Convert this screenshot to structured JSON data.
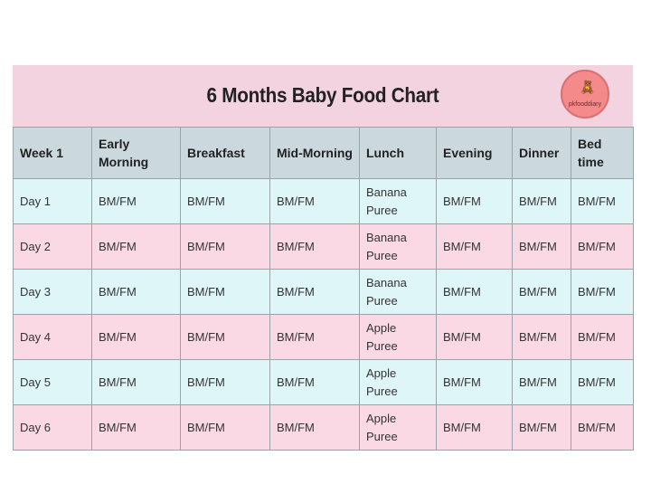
{
  "title": "6 Months Baby Food Chart",
  "logo_text": "pkfooddiary",
  "columns": [
    "Week 1",
    "Early Morning",
    "Breakfast",
    "Mid-Morning",
    "Lunch",
    "Evening",
    "Dinner",
    "Bed time"
  ],
  "rows": [
    [
      "Day 1",
      "BM/FM",
      "BM/FM",
      "BM/FM",
      "Banana Puree",
      "BM/FM",
      "BM/FM",
      "BM/FM"
    ],
    [
      "Day 2",
      "BM/FM",
      "BM/FM",
      "BM/FM",
      "Banana Puree",
      "BM/FM",
      "BM/FM",
      "BM/FM"
    ],
    [
      "Day 3",
      "BM/FM",
      "BM/FM",
      "BM/FM",
      "Banana Puree",
      "BM/FM",
      "BM/FM",
      "BM/FM"
    ],
    [
      "Day 4",
      "BM/FM",
      "BM/FM",
      "BM/FM",
      "Apple Puree",
      "BM/FM",
      "BM/FM",
      "BM/FM"
    ],
    [
      "Day 5",
      "BM/FM",
      "BM/FM",
      "BM/FM",
      "Apple Puree",
      "BM/FM",
      "BM/FM",
      "BM/FM"
    ],
    [
      "Day 6",
      "BM/FM",
      "BM/FM",
      "BM/FM",
      "Apple Puree",
      "BM/FM",
      "BM/FM",
      "BM/FM"
    ]
  ],
  "colors": {
    "title_bg": "#f2d3df",
    "header_bg": "#cbd9de",
    "row_cyan": "#dff6f8",
    "row_pink": "#fbd9e4",
    "logo": "#f48a8a"
  }
}
